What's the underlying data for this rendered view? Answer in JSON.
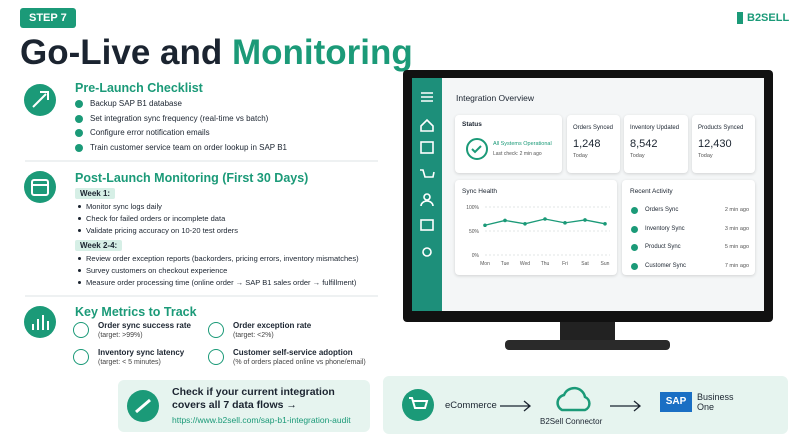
{
  "step": "STEP 7",
  "title": {
    "lead": "Go-Live and",
    "highlight": "Monitoring"
  },
  "logo": "B2SELL",
  "checklist": {
    "heading": "Pre-Launch Checklist",
    "items": [
      "Backup SAP B1 database",
      "Set integration sync frequency (real-time vs batch)",
      "Configure error notification emails",
      "Train customer service team on order lookup in SAP B1"
    ]
  },
  "monitoring": {
    "heading": "Post-Launch Monitoring (First 30 Days)",
    "groups": [
      {
        "label": "Week 1:",
        "items": [
          "Monitor sync logs daily",
          "Check for failed orders or incomplete data",
          "Validate pricing accuracy on 10-20 test orders"
        ]
      },
      {
        "label": "Week 2-4:",
        "items": [
          "Review order exception reports (backorders, pricing errors, inventory mismatches)",
          "Survey customers on checkout experience",
          "Measure order processing time (online order → SAP B1 sales order → fulfillment)"
        ]
      }
    ]
  },
  "metrics": {
    "heading": "Key Metrics to Track",
    "items": [
      {
        "name": "Order sync success rate",
        "target": "(target: >99%)"
      },
      {
        "name": "Order exception rate",
        "target": "(target: <2%)"
      },
      {
        "name": "Inventory sync latency",
        "target": "(target: < 5 minutes)"
      },
      {
        "name": "Customer self-service adoption",
        "target": "(% of orders placed online vs phone/email)"
      }
    ]
  },
  "cta": {
    "lines": [
      "Check if your current integration",
      "covers all 7 data flows →"
    ],
    "url": "https://www.b2sell.com/sap-b1-integration-audit"
  },
  "flow": {
    "source": "eCommerce",
    "connector": "B2Sell Connector",
    "target_logo": "SAP",
    "target": "Business One"
  },
  "dashboard": {
    "title": "Integration Overview",
    "status": {
      "label": "Status",
      "value": "All Systems Operational",
      "note": "Last check: 2 min ago"
    },
    "stats": [
      {
        "label": "Orders Synced",
        "value": "1,248",
        "note": "Today"
      },
      {
        "label": "Inventory Updated",
        "value": "8,542",
        "note": "Today"
      },
      {
        "label": "Products Synced",
        "value": "12,430",
        "note": "Today"
      }
    ],
    "activity": {
      "title": "Recent Activity",
      "items": [
        {
          "name": "Orders Sync",
          "time": "2 min ago"
        },
        {
          "name": "Inventory Sync",
          "time": "3 min ago"
        },
        {
          "name": "Product Sync",
          "time": "5 min ago"
        },
        {
          "name": "Customer Sync",
          "time": "7 min ago"
        }
      ]
    }
  },
  "chart_data": {
    "type": "line",
    "title": "Sync Health",
    "categories": [
      "Mon",
      "Tue",
      "Wed",
      "Thu",
      "Fri",
      "Sat",
      "Sun"
    ],
    "values": [
      62,
      72,
      65,
      75,
      67,
      73,
      65
    ],
    "color": "#1b9a78",
    "ylim": [
      0,
      100
    ],
    "yticks": [
      {
        "value": 0,
        "label": "0%"
      },
      {
        "value": 50,
        "label": "50%"
      },
      {
        "value": 100,
        "label": "100%"
      }
    ],
    "grid": true
  }
}
